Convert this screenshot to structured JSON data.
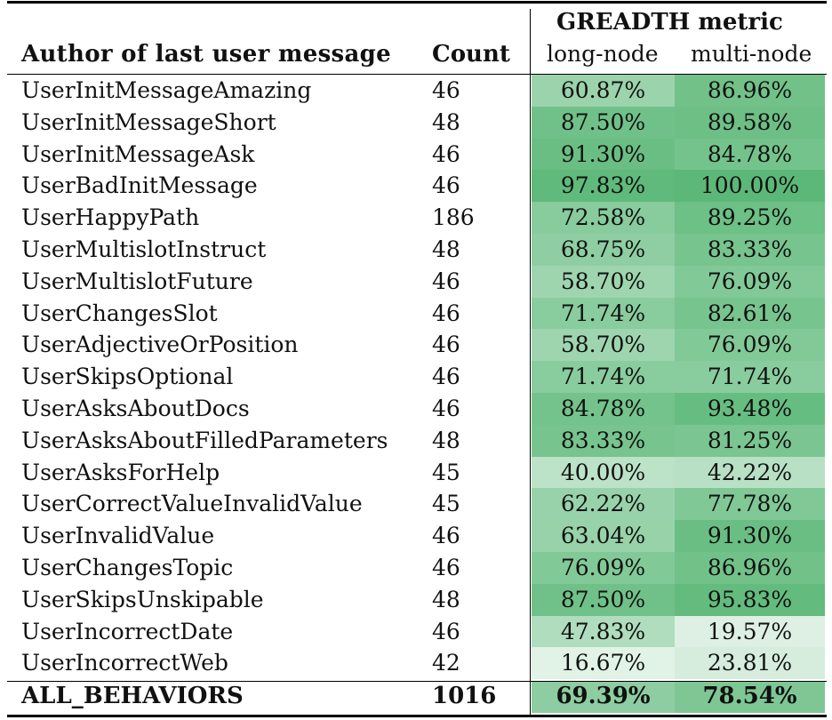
{
  "table": {
    "headers": {
      "author": "Author of last user message",
      "count": "Count",
      "metric_group": "GREADTH metric",
      "long_node": "long-node",
      "multi_node": "multi-node"
    },
    "rows": [
      {
        "author": "UserInitMessageAmazing",
        "count": "46",
        "long_node": "60.87%",
        "multi_node": "86.96%"
      },
      {
        "author": "UserInitMessageShort",
        "count": "48",
        "long_node": "87.50%",
        "multi_node": "89.58%"
      },
      {
        "author": "UserInitMessageAsk",
        "count": "46",
        "long_node": "91.30%",
        "multi_node": "84.78%"
      },
      {
        "author": "UserBadInitMessage",
        "count": "46",
        "long_node": "97.83%",
        "multi_node": "100.00%"
      },
      {
        "author": "UserHappyPath",
        "count": "186",
        "long_node": "72.58%",
        "multi_node": "89.25%"
      },
      {
        "author": "UserMultislotInstruct",
        "count": "48",
        "long_node": "68.75%",
        "multi_node": "83.33%"
      },
      {
        "author": "UserMultislotFuture",
        "count": "46",
        "long_node": "58.70%",
        "multi_node": "76.09%"
      },
      {
        "author": "UserChangesSlot",
        "count": "46",
        "long_node": "71.74%",
        "multi_node": "82.61%"
      },
      {
        "author": "UserAdjectiveOrPosition",
        "count": "46",
        "long_node": "58.70%",
        "multi_node": "76.09%"
      },
      {
        "author": "UserSkipsOptional",
        "count": "46",
        "long_node": "71.74%",
        "multi_node": "71.74%"
      },
      {
        "author": "UserAsksAboutDocs",
        "count": "46",
        "long_node": "84.78%",
        "multi_node": "93.48%"
      },
      {
        "author": "UserAsksAboutFilledParameters",
        "count": "48",
        "long_node": "83.33%",
        "multi_node": "81.25%"
      },
      {
        "author": "UserAsksForHelp",
        "count": "45",
        "long_node": "40.00%",
        "multi_node": "42.22%"
      },
      {
        "author": "UserCorrectValueInvalidValue",
        "count": "45",
        "long_node": "62.22%",
        "multi_node": "77.78%"
      },
      {
        "author": "UserInvalidValue",
        "count": "46",
        "long_node": "63.04%",
        "multi_node": "91.30%"
      },
      {
        "author": "UserChangesTopic",
        "count": "46",
        "long_node": "76.09%",
        "multi_node": "86.96%"
      },
      {
        "author": "UserSkipsUnskipable",
        "count": "48",
        "long_node": "87.50%",
        "multi_node": "95.83%"
      },
      {
        "author": "UserIncorrectDate",
        "count": "46",
        "long_node": "47.83%",
        "multi_node": "19.57%"
      },
      {
        "author": "UserIncorrectWeb",
        "count": "42",
        "long_node": "16.67%",
        "multi_node": "23.81%"
      }
    ],
    "total": {
      "author": "ALL_BEHAVIORS",
      "count": "1016",
      "long_node": "69.39%",
      "multi_node": "78.54%"
    }
  }
}
